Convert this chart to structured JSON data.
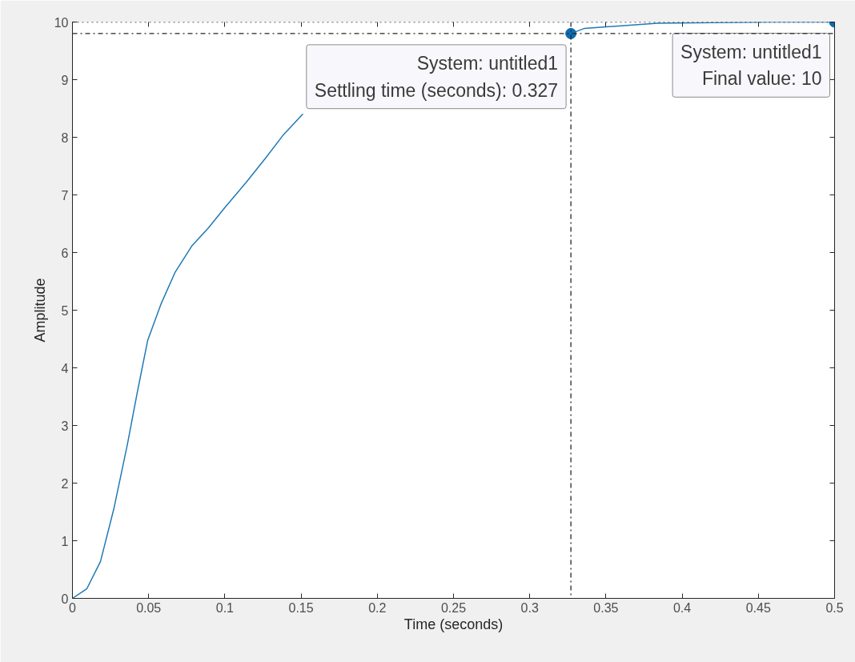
{
  "chart_data": {
    "type": "line",
    "xlabel": "Time (seconds)",
    "ylabel": "Amplitude",
    "xlim": [
      0,
      0.5
    ],
    "ylim": [
      0,
      10
    ],
    "xticks": [
      0,
      0.05,
      0.1,
      0.15,
      0.2,
      0.25,
      0.3,
      0.35,
      0.4,
      0.45,
      0.5
    ],
    "yticks": [
      0,
      1,
      2,
      3,
      4,
      5,
      6,
      7,
      8,
      9,
      10
    ],
    "grid": false,
    "marker": "none",
    "line_style": "solid",
    "series": [
      {
        "color": "#1f7ab5",
        "x": [
          0,
          0.0095,
          0.0184,
          0.0273,
          0.0361,
          0.0428,
          0.0494,
          0.0583,
          0.0672,
          0.0782,
          0.0893,
          0.1,
          0.114,
          0.127,
          0.138,
          0.151,
          0.24,
          0.327,
          0.336,
          0.384,
          0.42,
          0.46,
          0.5
        ],
        "values": [
          0,
          0.17,
          0.64,
          1.57,
          2.68,
          3.61,
          4.48,
          5.12,
          5.65,
          6.11,
          6.43,
          6.78,
          7.22,
          7.65,
          8.03,
          8.4,
          null,
          9.8,
          9.89,
          9.98,
          9.99,
          10,
          10
        ]
      }
    ],
    "ref_lines": [
      {
        "axis": "y",
        "value": 9.8,
        "line_style": "dashdot",
        "color": "#262626"
      },
      {
        "axis": "x",
        "value": 0.327,
        "line_style": "dashdot",
        "color": "#262626"
      },
      {
        "axis": "y",
        "value": 10,
        "line_style": "dotted",
        "color": "#262626"
      }
    ],
    "annotations": [
      {
        "text": "System: untitled1\nSettling time (seconds): 0.327",
        "x": 0.327,
        "y": 9.8
      },
      {
        "text": "System: untitled1\nFinal value: 10",
        "x": 0.5,
        "y": 10
      }
    ]
  }
}
